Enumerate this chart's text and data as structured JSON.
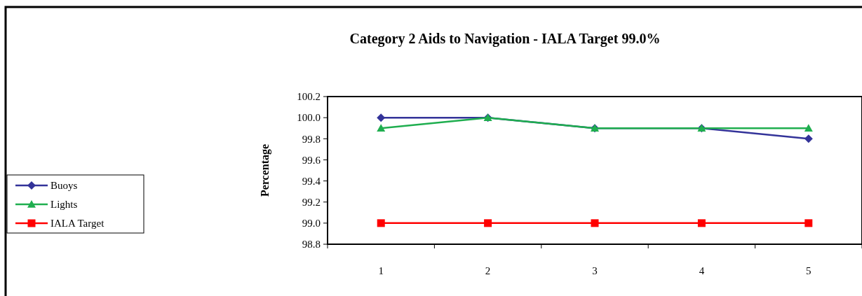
{
  "chart_data": {
    "type": "line",
    "title": "Category 2 Aids to Navigation - IALA Target  99.0%",
    "ylabel": "Percentage",
    "categories": [
      "1",
      "2",
      "3",
      "4",
      "5"
    ],
    "series": [
      {
        "name": "Buoys",
        "color": "#333399",
        "marker": "diamond",
        "values": [
          100.0,
          100.0,
          99.9,
          99.9,
          99.8
        ]
      },
      {
        "name": "Lights",
        "color": "#1fae4f",
        "marker": "triangle",
        "values": [
          99.9,
          100.0,
          99.9,
          99.9,
          99.9
        ]
      },
      {
        "name": "IALA Target",
        "color": "#ff0000",
        "marker": "square",
        "values": [
          99.0,
          99.0,
          99.0,
          99.0,
          99.0
        ]
      }
    ],
    "ylim": [
      98.8,
      100.2
    ],
    "yticks": [
      {
        "value": 98.8,
        "label": "98.8"
      },
      {
        "value": 99,
        "label": "99.0"
      },
      {
        "value": 99.2,
        "label": "99.2"
      },
      {
        "value": 99.4,
        "label": "99.4"
      },
      {
        "value": 99.6,
        "label": "99.6"
      },
      {
        "value": 99.8,
        "label": "99.8"
      },
      {
        "value": 100,
        "label": "100.0"
      },
      {
        "value": 100.2,
        "label": "100.2"
      }
    ],
    "grid": false,
    "legend": "left"
  }
}
